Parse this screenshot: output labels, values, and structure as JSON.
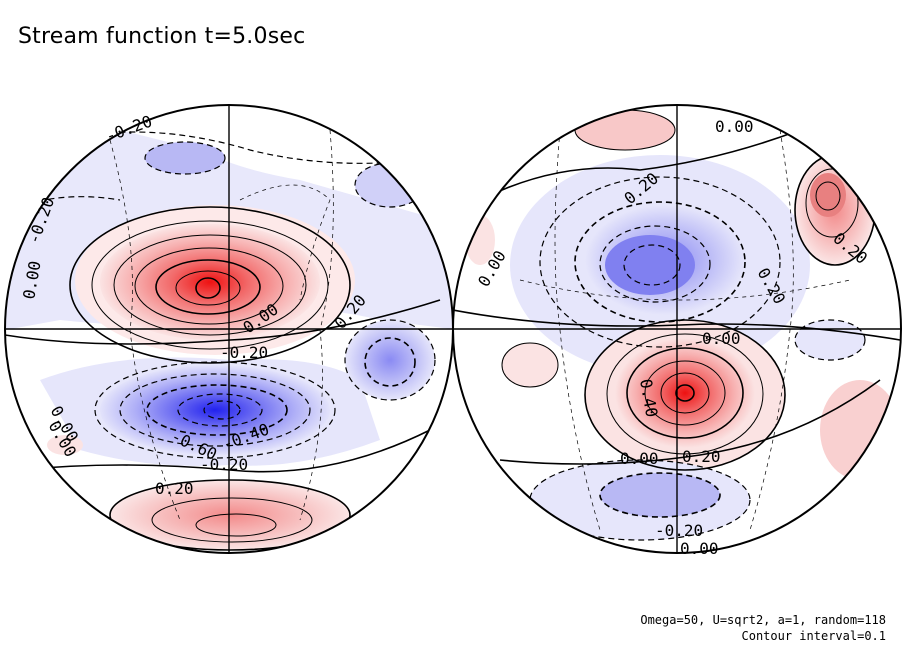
{
  "title": "Stream function t=5.0sec",
  "params": {
    "line1": "Omega=50, U=sqrt2, a=1, random=118",
    "line2": "Contour interval=0.1"
  },
  "colors": {
    "positive_strong": "#ee2222",
    "positive_light": "#fbe3e3",
    "negative_strong": "#2a2aee",
    "negative_light": "#e3e3fb",
    "contour": "#000000"
  },
  "hemispheres": [
    {
      "name": "left",
      "labels": [
        "-0.20",
        "-0.20",
        "0.00",
        "0.00",
        "0.20",
        "-0.20",
        "0.00",
        "-0.60",
        "-0.40",
        "-0.20",
        "0.20",
        "0.00"
      ]
    },
    {
      "name": "right",
      "labels": [
        "0.00",
        "0.20",
        "0.20",
        "0.00",
        "0.20",
        "0.00",
        "0.40",
        "0.00",
        "0.20",
        "-0.20",
        "0.00"
      ]
    }
  ]
}
